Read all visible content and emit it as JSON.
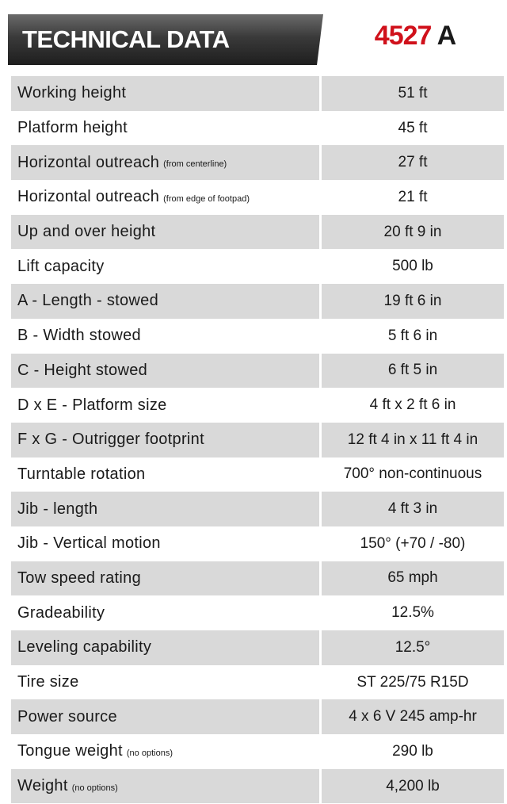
{
  "header": {
    "title": "TECHNICAL DATA",
    "model_number": "4527",
    "model_suffix": "A"
  },
  "table": {
    "rows": [
      {
        "label": "Working height",
        "value": "51 ft"
      },
      {
        "label": "Platform height",
        "value": "45 ft"
      },
      {
        "label": "Horizontal outreach",
        "note": "(from centerline)",
        "value": "27 ft"
      },
      {
        "label": "Horizontal outreach",
        "note": "(from edge of footpad)",
        "value": "21 ft"
      },
      {
        "label": "Up and over height",
        "value": "20 ft 9 in"
      },
      {
        "label": "Lift capacity",
        "value": "500 lb"
      },
      {
        "label": "A - Length - stowed",
        "value": "19 ft 6 in"
      },
      {
        "label": "B - Width stowed",
        "value": "5 ft 6 in"
      },
      {
        "label": "C - Height stowed",
        "value": "6 ft 5 in"
      },
      {
        "label": "D x E - Platform size",
        "value": "4 ft x 2 ft 6 in"
      },
      {
        "label": "F x G - Outrigger footprint",
        "value": "12 ft 4 in x 11 ft 4 in"
      },
      {
        "label": "Turntable rotation",
        "value": "700° non-continuous"
      },
      {
        "label": "Jib - length",
        "value": "4 ft 3 in"
      },
      {
        "label": "Jib - Vertical motion",
        "value": "150° (+70 / -80)"
      },
      {
        "label": "Tow speed rating",
        "value": "65 mph"
      },
      {
        "label": "Gradeability",
        "value": "12.5%"
      },
      {
        "label": "Leveling capability",
        "value": "12.5°"
      },
      {
        "label": "Tire size",
        "value": "ST 225/75 R15D"
      },
      {
        "label": "Power source",
        "value": "4 x 6 V 245 amp-hr"
      },
      {
        "label": "Tongue weight",
        "note": "(no options)",
        "value": "290 lb"
      },
      {
        "label": "Weight",
        "note": "(no options)",
        "value": "4,200 lb"
      }
    ]
  }
}
